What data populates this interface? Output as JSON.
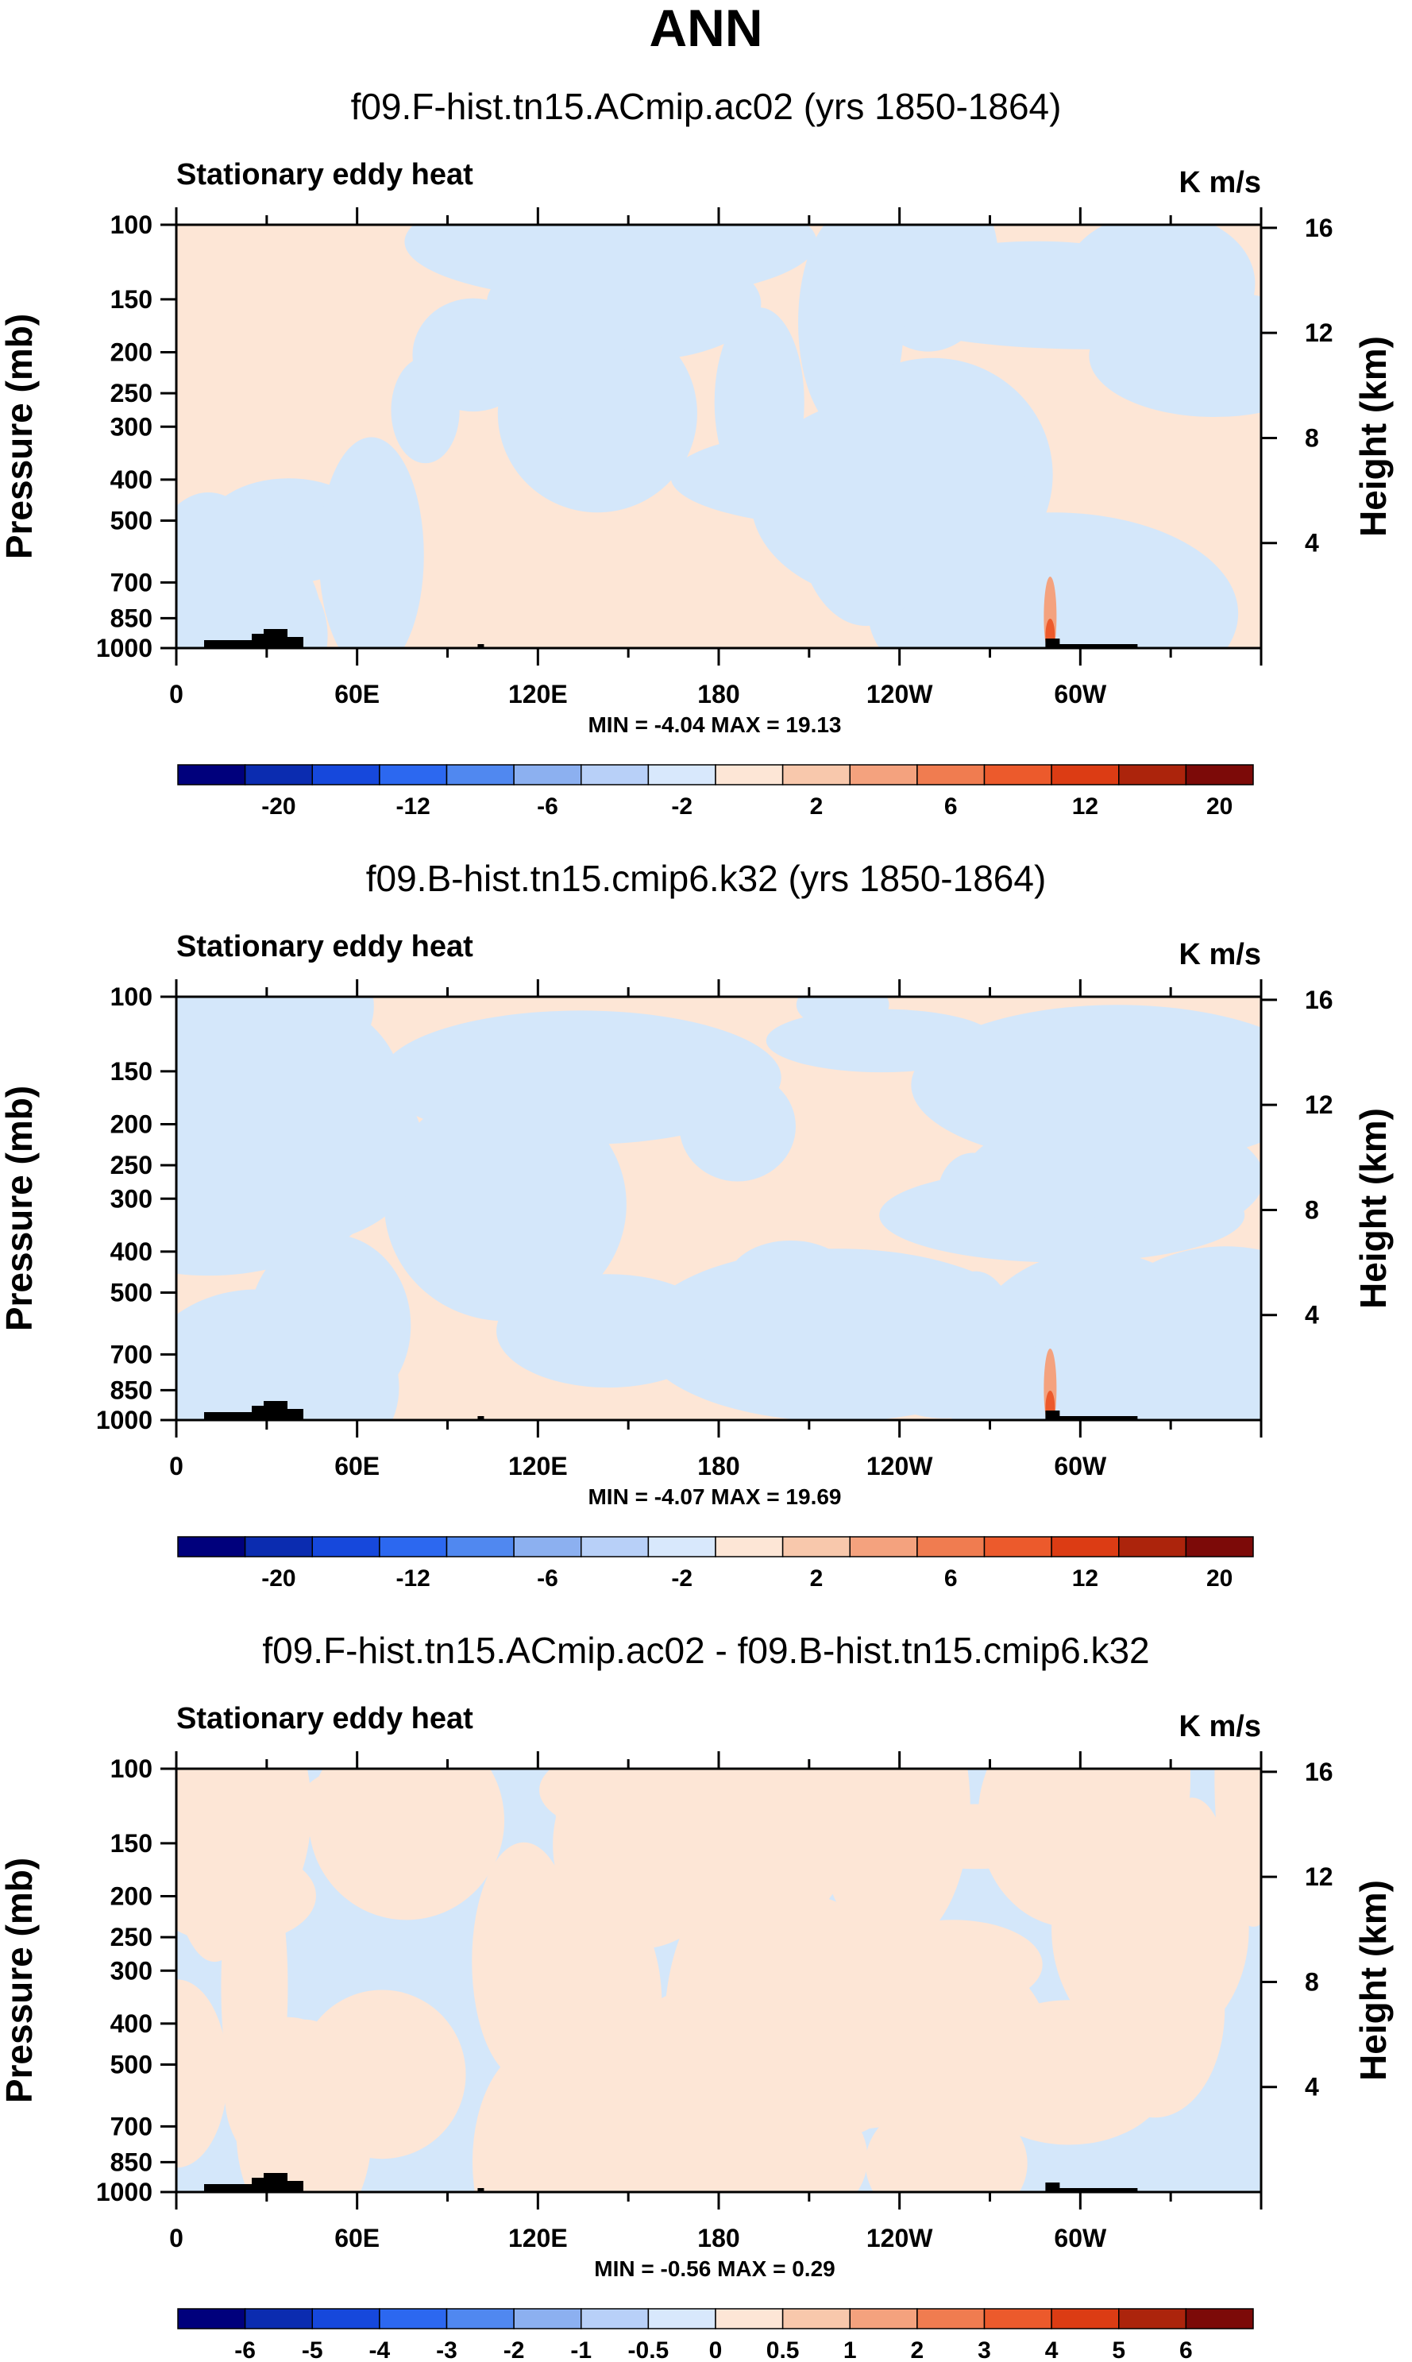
{
  "figure_title": "ANN",
  "colors": {
    "light_blue": "#d4e7fa",
    "light_peach": "#fde6d6",
    "topo": "#000000",
    "frame": "#000000"
  },
  "chart_data": [
    {
      "type": "heatmap",
      "title": "f09.F-hist.tn15.ACmip.ac02 (yrs 1850-1864)",
      "left_label": "Stationary eddy heat",
      "right_label": "K m/s",
      "ylabel": "Pressure (mb)",
      "y2label": "Height (km)",
      "x_ticks": [
        "0",
        "60E",
        "120E",
        "180",
        "120W",
        "60W"
      ],
      "y_ticks": [
        "100",
        "150",
        "200",
        "250",
        "300",
        "400",
        "500",
        "700",
        "850",
        "1000"
      ],
      "y2_ticks": [
        "16",
        "12",
        "8",
        "4"
      ],
      "stats": "MIN = -4.04   MAX = 19.13",
      "colorbar_labels": [
        "-20",
        "-12",
        "-6",
        "-2",
        "2",
        "6",
        "12",
        "20"
      ],
      "colorbar_colors": [
        "#00007c",
        "#0b2cb0",
        "#1648dc",
        "#2c68f0",
        "#5088f0",
        "#8cb0f0",
        "#b8d0f8",
        "#d8e8fc",
        "#fde6d6",
        "#f8c8ac",
        "#f4a27e",
        "#f07c50",
        "#ec5a2c",
        "#dc3c14",
        "#ac240c",
        "#7c0a08"
      ]
    },
    {
      "type": "heatmap",
      "title": "f09.B-hist.tn15.cmip6.k32 (yrs 1850-1864)",
      "left_label": "Stationary eddy heat",
      "right_label": "K m/s",
      "ylabel": "Pressure (mb)",
      "y2label": "Height (km)",
      "x_ticks": [
        "0",
        "60E",
        "120E",
        "180",
        "120W",
        "60W"
      ],
      "y_ticks": [
        "100",
        "150",
        "200",
        "250",
        "300",
        "400",
        "500",
        "700",
        "850",
        "1000"
      ],
      "y2_ticks": [
        "16",
        "12",
        "8",
        "4"
      ],
      "stats": "MIN = -4.07   MAX = 19.69",
      "colorbar_labels": [
        "-20",
        "-12",
        "-6",
        "-2",
        "2",
        "6",
        "12",
        "20"
      ],
      "colorbar_colors": [
        "#00007c",
        "#0b2cb0",
        "#1648dc",
        "#2c68f0",
        "#5088f0",
        "#8cb0f0",
        "#b8d0f8",
        "#d8e8fc",
        "#fde6d6",
        "#f8c8ac",
        "#f4a27e",
        "#f07c50",
        "#ec5a2c",
        "#dc3c14",
        "#ac240c",
        "#7c0a08"
      ]
    },
    {
      "type": "heatmap",
      "title": "f09.F-hist.tn15.ACmip.ac02 - f09.B-hist.tn15.cmip6.k32",
      "left_label": "Stationary eddy heat",
      "right_label": "K m/s",
      "ylabel": "Pressure (mb)",
      "y2label": "Height (km)",
      "x_ticks": [
        "0",
        "60E",
        "120E",
        "180",
        "120W",
        "60W"
      ],
      "y_ticks": [
        "100",
        "150",
        "200",
        "250",
        "300",
        "400",
        "500",
        "700",
        "850",
        "1000"
      ],
      "y2_ticks": [
        "16",
        "12",
        "8",
        "4"
      ],
      "stats": "MIN = -0.56   MAX =  0.29",
      "colorbar_labels": [
        "-6",
        "-5",
        "-4",
        "-3",
        "-2",
        "-1",
        "-0.5",
        "0",
        "0.5",
        "1",
        "2",
        "3",
        "4",
        "5",
        "6"
      ],
      "colorbar_colors": [
        "#00007c",
        "#0b2cb0",
        "#1648dc",
        "#2c68f0",
        "#5088f0",
        "#8cb0f0",
        "#b8d0f8",
        "#d8e8fc",
        "#fde6d6",
        "#f8c8ac",
        "#f4a27e",
        "#f07c50",
        "#ec5a2c",
        "#dc3c14",
        "#ac240c",
        "#7c0a08"
      ]
    }
  ]
}
